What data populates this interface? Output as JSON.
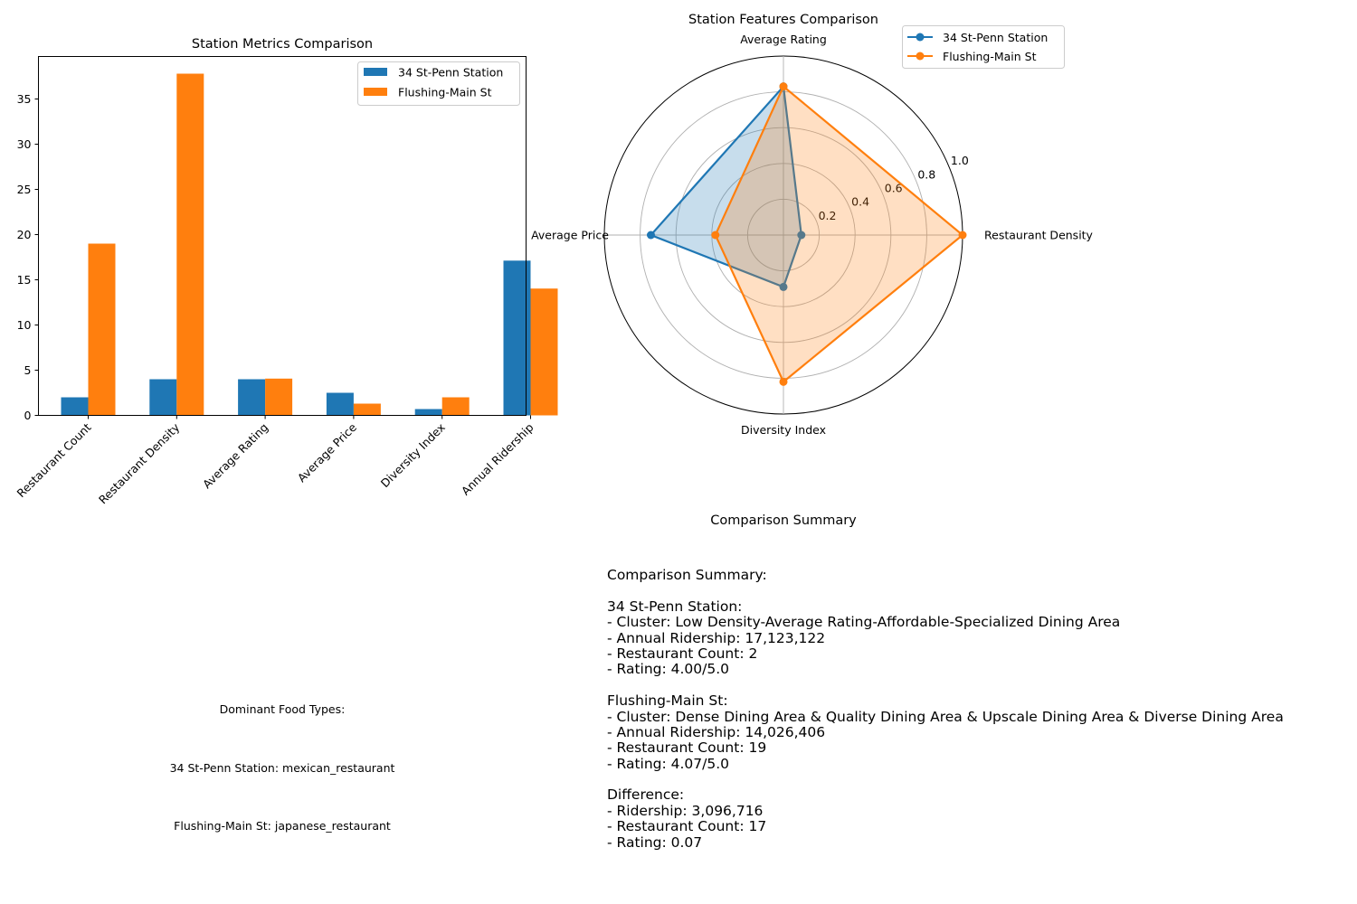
{
  "chart_data": [
    {
      "type": "bar",
      "title": "Station Metrics Comparison",
      "categories": [
        "Restaurant Count",
        "Restaurant Density",
        "Average Rating",
        "Average Price",
        "Diversity Index",
        "Annual Ridership"
      ],
      "series": [
        {
          "name": "34 St-Penn Station",
          "color": "#1f77b4",
          "values": [
            2,
            4,
            4.0,
            2.5,
            0.7,
            17.12
          ]
        },
        {
          "name": "Flushing-Main St",
          "color": "#ff7f0e",
          "values": [
            19,
            37.8,
            4.07,
            1.3,
            2.0,
            14.03
          ]
        }
      ],
      "ylim": [
        0,
        39.7
      ],
      "yticks": [
        0,
        5,
        10,
        15,
        20,
        25,
        30,
        35
      ],
      "legend": "top-right",
      "grid": false
    },
    {
      "type": "radar",
      "title": "Station Features Comparison",
      "axes": [
        "Restaurant Density",
        "Average Rating",
        "Average Price",
        "Diversity Index"
      ],
      "rlim": [
        0,
        1
      ],
      "rticks": [
        0.2,
        0.4,
        0.6,
        0.8,
        1.0
      ],
      "series": [
        {
          "name": "34 St-Penn Station",
          "color": "#1f77b4",
          "values": [
            0.1,
            0.83,
            0.74,
            0.29
          ]
        },
        {
          "name": "Flushing-Main St",
          "color": "#ff7f0e",
          "values": [
            1.0,
            0.83,
            0.38,
            0.82
          ]
        }
      ],
      "legend": "top-right",
      "grid": true
    }
  ],
  "food_types": {
    "heading": "Dominant Food Types:",
    "lines": [
      "34 St-Penn Station: mexican_restaurant",
      "Flushing-Main St: japanese_restaurant"
    ]
  },
  "summary": {
    "title": "Comparison Summary",
    "lines": [
      "Comparison Summary:",
      "",
      "34 St-Penn Station:",
      "- Cluster: Low Density-Average Rating-Affordable-Specialized Dining Area",
      "- Annual Ridership: 17,123,122",
      "- Restaurant Count: 2",
      "- Rating: 4.00/5.0",
      "",
      "Flushing-Main St:",
      "- Cluster: Dense Dining Area & Quality Dining Area & Upscale Dining Area & Diverse Dining Area",
      "- Annual Ridership: 14,026,406",
      "- Restaurant Count: 19",
      "- Rating: 4.07/5.0",
      "",
      "Difference:",
      "- Ridership: 3,096,716",
      "- Restaurant Count: 17",
      "- Rating: 0.07"
    ]
  }
}
